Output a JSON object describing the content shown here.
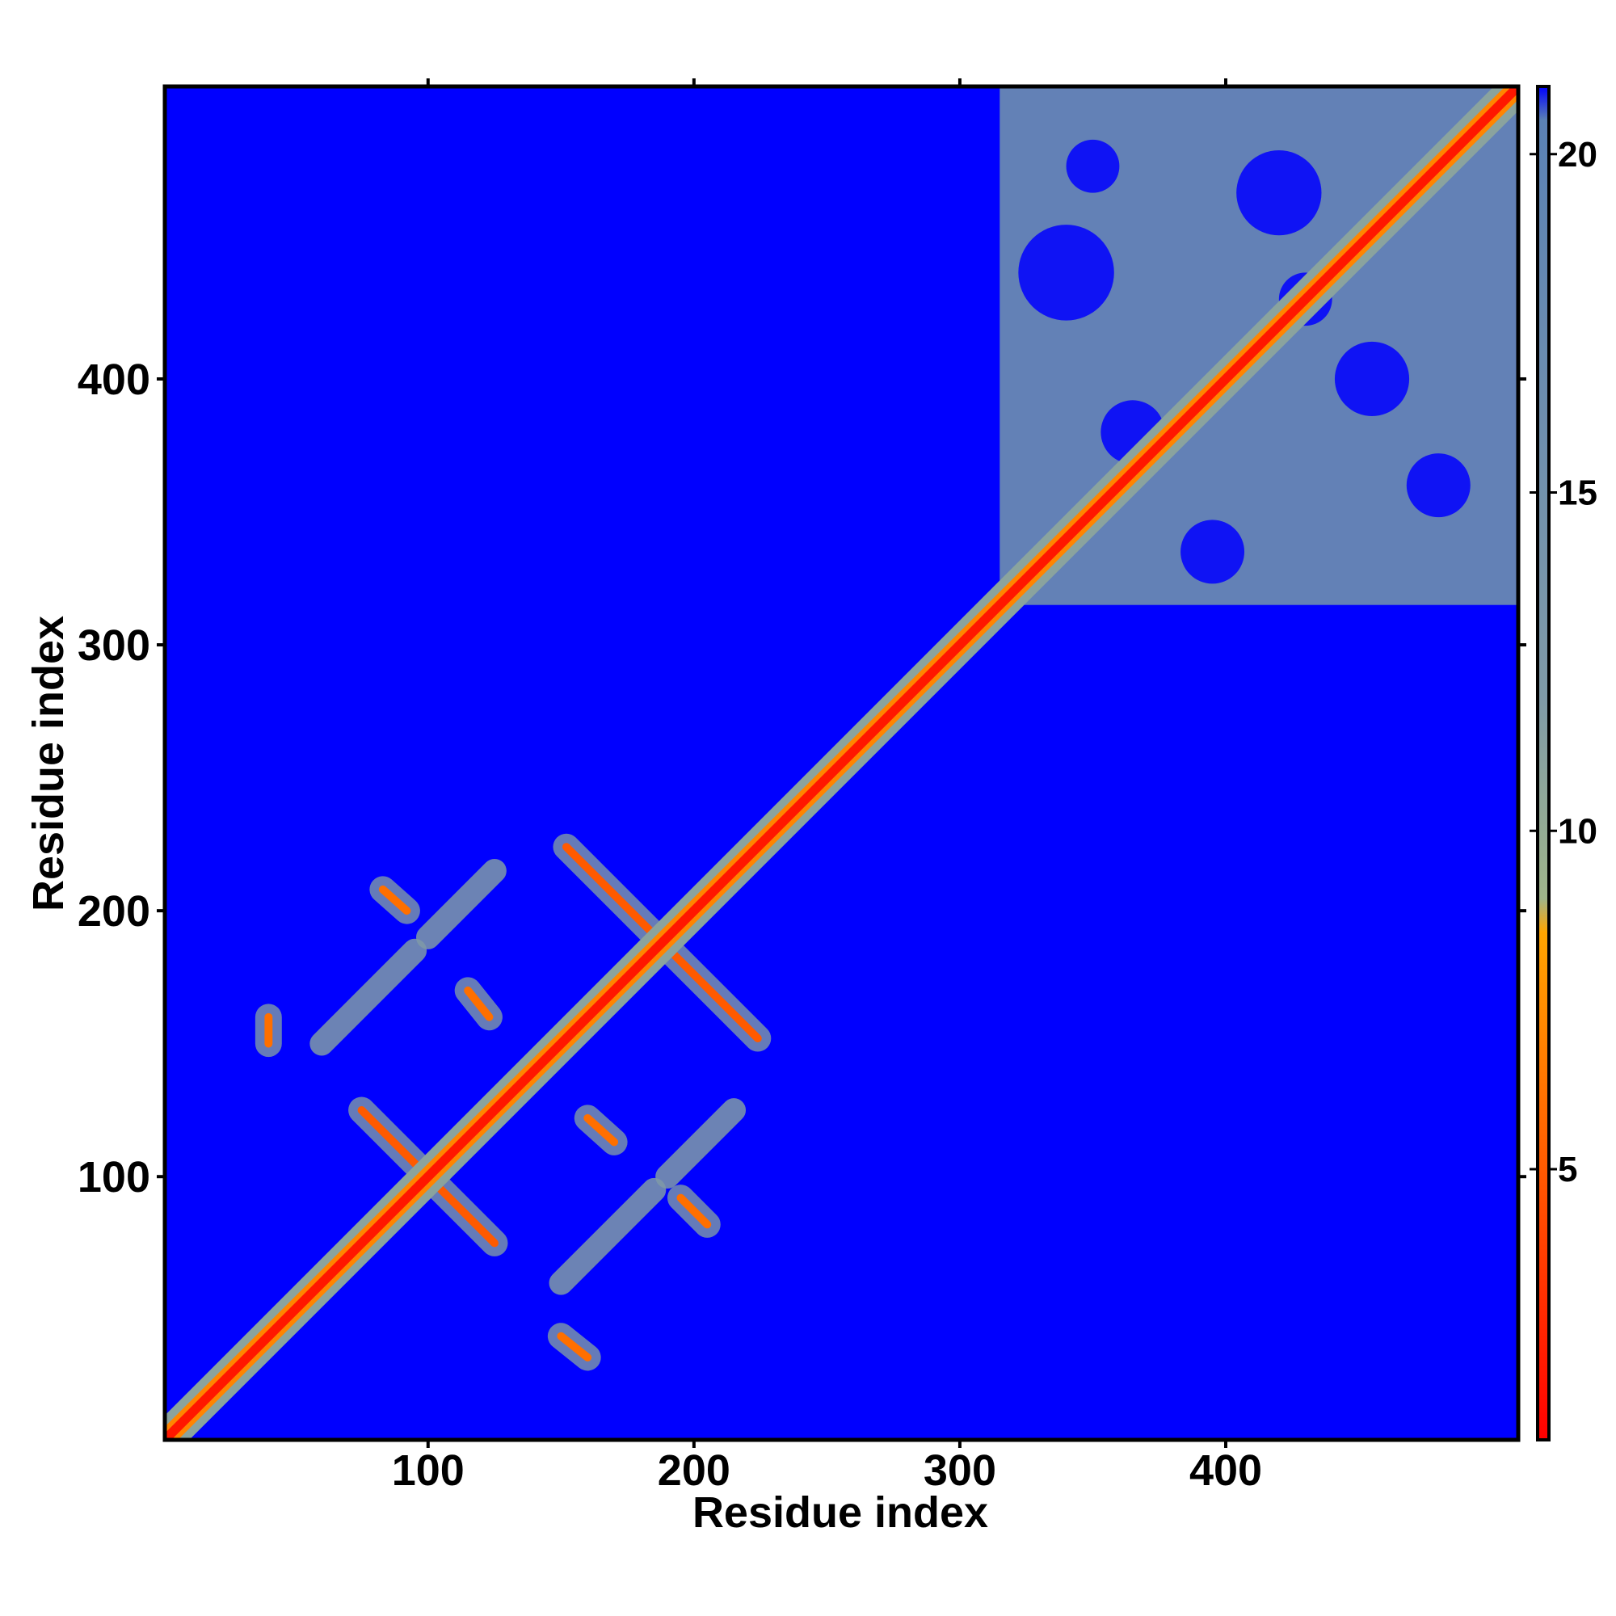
{
  "chart_data": {
    "type": "heatmap",
    "title": "",
    "xlabel": "Residue index",
    "ylabel": "Residue index",
    "xlim": [
      1,
      510
    ],
    "ylim": [
      1,
      510
    ],
    "x_ticks": [
      100,
      200,
      300,
      400
    ],
    "y_ticks": [
      100,
      200,
      300,
      400
    ],
    "colorbar": {
      "range": [
        1,
        21
      ],
      "ticks": [
        5,
        10,
        15,
        20
      ],
      "stops": [
        {
          "value": 1,
          "color": "#ff0000"
        },
        {
          "value": 5,
          "color": "#ff5a00"
        },
        {
          "value": 8.5,
          "color": "#ffa500"
        },
        {
          "value": 9,
          "color": "#9fb48a"
        },
        {
          "value": 12,
          "color": "#7f9aa8"
        },
        {
          "value": 20.5,
          "color": "#5b82b5"
        },
        {
          "value": 21,
          "color": "#0000ff"
        }
      ]
    },
    "background_value": 21,
    "grid": false,
    "features": {
      "diagonal": {
        "from": 1,
        "to": 510,
        "value": 2
      },
      "dense_block": {
        "x": [
          315,
          510
        ],
        "y": [
          315,
          510
        ],
        "value": 16
      },
      "cross_contacts": [
        {
          "center": [
            100,
            100
          ],
          "antidiagonal_from": [
            75,
            125
          ],
          "antidiagonal_to": [
            125,
            75
          ],
          "value": 5
        },
        {
          "center": [
            188,
            188
          ],
          "antidiagonal_from": [
            152,
            224
          ],
          "antidiagonal_to": [
            224,
            152
          ],
          "value": 5
        },
        {
          "from": [
            40,
            160
          ],
          "to": [
            40,
            150
          ],
          "value": 6
        },
        {
          "from": [
            115,
            170
          ],
          "to": [
            123,
            160
          ],
          "value": 6
        },
        {
          "from": [
            160,
            122
          ],
          "to": [
            170,
            113
          ],
          "value": 6
        },
        {
          "from": [
            83,
            208
          ],
          "to": [
            92,
            200
          ],
          "value": 6
        },
        {
          "from": [
            195,
            92
          ],
          "to": [
            205,
            82
          ],
          "value": 6
        },
        {
          "from": [
            150,
            40
          ],
          "to": [
            160,
            32
          ],
          "value": 6
        }
      ],
      "parallel_bands": [
        {
          "from": [
            100,
            190
          ],
          "to": [
            125,
            215
          ],
          "value": 12
        },
        {
          "from": [
            60,
            150
          ],
          "to": [
            95,
            185
          ],
          "value": 12
        },
        {
          "from": [
            190,
            100
          ],
          "to": [
            215,
            125
          ],
          "value": 12
        },
        {
          "from": [
            150,
            60
          ],
          "to": [
            185,
            95
          ],
          "value": 12
        }
      ]
    }
  }
}
